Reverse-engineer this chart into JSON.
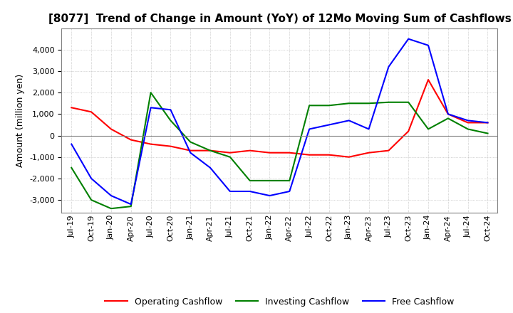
{
  "title": "[8077]  Trend of Change in Amount (YoY) of 12Mo Moving Sum of Cashflows",
  "ylabel": "Amount (million yen)",
  "ylim": [
    -3600,
    5000
  ],
  "yticks": [
    -3000,
    -2000,
    -1000,
    0,
    1000,
    2000,
    3000,
    4000
  ],
  "x_labels": [
    "Jul-19",
    "Oct-19",
    "Jan-20",
    "Apr-20",
    "Jul-20",
    "Oct-20",
    "Jan-21",
    "Apr-21",
    "Jul-21",
    "Oct-21",
    "Jan-22",
    "Apr-22",
    "Jul-22",
    "Oct-22",
    "Jan-23",
    "Apr-23",
    "Jul-23",
    "Oct-23",
    "Jan-24",
    "Apr-24",
    "Jul-24",
    "Oct-24"
  ],
  "operating": [
    1300,
    1100,
    300,
    -200,
    -400,
    -500,
    -700,
    -700,
    -800,
    -700,
    -800,
    -800,
    -900,
    -900,
    -1000,
    -800,
    -700,
    200,
    2600,
    1000,
    600,
    600
  ],
  "investing": [
    -1500,
    -3000,
    -3400,
    -3300,
    2000,
    700,
    -300,
    -700,
    -1000,
    -2100,
    -2100,
    -2100,
    1400,
    1400,
    1500,
    1500,
    1550,
    1550,
    300,
    800,
    300,
    100
  ],
  "free": [
    -400,
    -2000,
    -2800,
    -3200,
    1300,
    1200,
    -800,
    -1500,
    -2600,
    -2600,
    -2800,
    -2600,
    300,
    500,
    700,
    300,
    3200,
    4500,
    4200,
    1000,
    700,
    600
  ],
  "op_color": "#ff0000",
  "inv_color": "#008000",
  "free_color": "#0000ff",
  "bg_color": "#ffffff",
  "grid_color": "#b0b0b0",
  "title_fontsize": 11,
  "label_fontsize": 9,
  "tick_fontsize": 8
}
